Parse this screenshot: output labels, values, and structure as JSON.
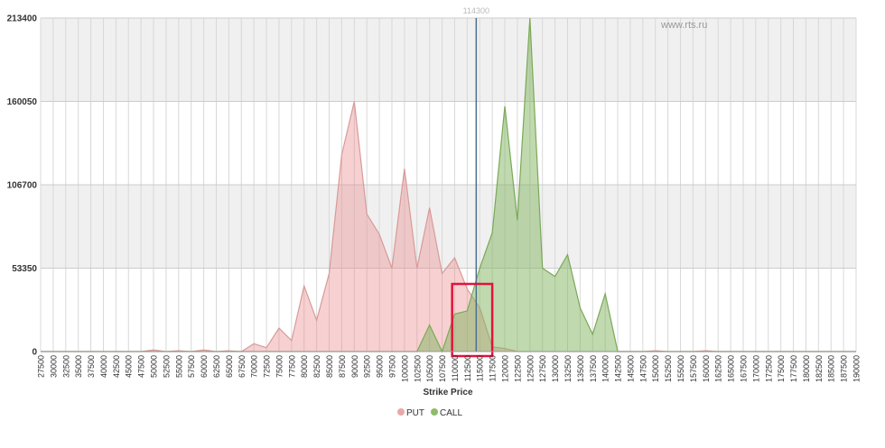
{
  "watermark": "www.rts.ru",
  "chart_data": {
    "type": "area",
    "xlabel": "Strike Price",
    "ylabel": "",
    "title": "",
    "ylim": [
      0,
      213400
    ],
    "y_ticks": [
      "0",
      "53350",
      "106700",
      "160050",
      "213400"
    ],
    "x_categories": [
      "27500",
      "30000",
      "32500",
      "35000",
      "37500",
      "40000",
      "42500",
      "45000",
      "47500",
      "50000",
      "52500",
      "55000",
      "57500",
      "60000",
      "62500",
      "65000",
      "67500",
      "70000",
      "72500",
      "75000",
      "77500",
      "80000",
      "82500",
      "85000",
      "87500",
      "90000",
      "92500",
      "95000",
      "97500",
      "100000",
      "102500",
      "105000",
      "107500",
      "110000",
      "112500",
      "115000",
      "117500",
      "120000",
      "122500",
      "125000",
      "127500",
      "130000",
      "132500",
      "135000",
      "137500",
      "140000",
      "142500",
      "145000",
      "147500",
      "150000",
      "152500",
      "155000",
      "157500",
      "160000",
      "162500",
      "165000",
      "167500",
      "170000",
      "172500",
      "175000",
      "177500",
      "180000",
      "182500",
      "185000",
      "187500",
      "190000"
    ],
    "current_price": {
      "label": "114300",
      "value": 114300
    },
    "highlight_range": [
      109500,
      117500
    ],
    "legend_position": "bottom-center",
    "grid": true,
    "series": [
      {
        "name": "PUT",
        "color": "#e8a8a6",
        "fill": "rgba(235,140,140,0.40)",
        "line": "#d89a98",
        "values": [
          0,
          0,
          0,
          0,
          0,
          0,
          0,
          0,
          0,
          1000,
          0,
          500,
          0,
          1000,
          0,
          500,
          0,
          5000,
          2500,
          15000,
          7000,
          42000,
          20000,
          50000,
          126000,
          160000,
          88000,
          75000,
          53350,
          117000,
          53350,
          92000,
          50000,
          60000,
          40000,
          28000,
          3000,
          2000,
          0,
          0,
          0,
          0,
          0,
          0,
          0,
          0,
          0,
          0,
          0,
          500,
          0,
          0,
          0,
          500,
          0,
          0,
          0,
          0,
          0,
          0,
          0,
          0,
          0,
          0,
          0,
          0
        ]
      },
      {
        "name": "CALL",
        "color": "#8fbc6a",
        "fill": "rgba(130,180,95,0.50)",
        "line": "#7aa957",
        "values": [
          0,
          0,
          0,
          0,
          0,
          0,
          0,
          0,
          0,
          0,
          0,
          0,
          0,
          0,
          0,
          0,
          0,
          0,
          0,
          0,
          0,
          0,
          0,
          0,
          0,
          0,
          0,
          0,
          0,
          0,
          0,
          17000,
          0,
          24000,
          26000,
          53350,
          76000,
          157000,
          84000,
          213400,
          53350,
          48000,
          62000,
          28000,
          11000,
          37000,
          0,
          0,
          0,
          0,
          0,
          0,
          0,
          0,
          0,
          0,
          0,
          0,
          0,
          0,
          0,
          0,
          0,
          0,
          0,
          0
        ]
      }
    ]
  }
}
